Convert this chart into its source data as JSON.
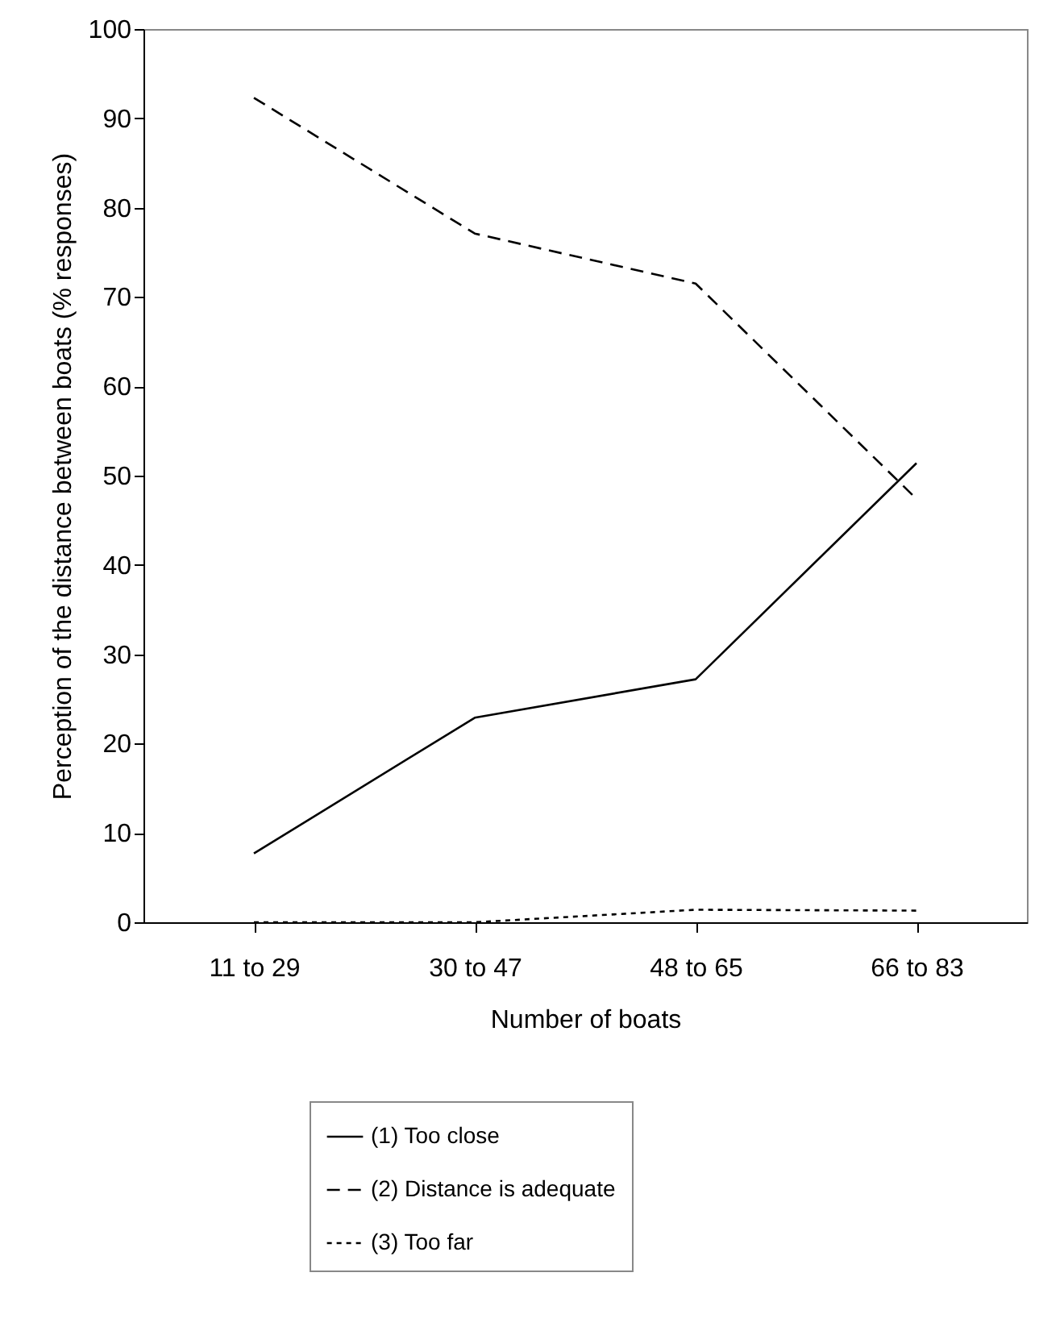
{
  "chart_data": {
    "type": "line",
    "xlabel": "Number of boats",
    "ylabel": "Perception of the distance between boats (% responses)",
    "categories": [
      "11 to 29",
      "30 to 47",
      "48 to 65",
      "66 to 83"
    ],
    "series": [
      {
        "name": "(1) Too close",
        "color": "#000000",
        "line_style": "solid",
        "values": [
          7.7,
          22.9,
          27.2,
          51.4
        ]
      },
      {
        "name": "(2) Distance is adequate",
        "color": "#000000",
        "line_style": "dashed",
        "values": [
          92.3,
          77.1,
          71.5,
          47.4
        ]
      },
      {
        "name": "(3) Too far",
        "color": "#000000",
        "line_style": "dotted",
        "values": [
          0,
          0,
          1.4,
          1.3
        ]
      }
    ],
    "ylim": [
      0,
      100
    ],
    "yticks": [
      0,
      10,
      20,
      30,
      40,
      50,
      60,
      70,
      80,
      90,
      100
    ],
    "grid": false,
    "legend": "bottom",
    "marker": "none"
  }
}
